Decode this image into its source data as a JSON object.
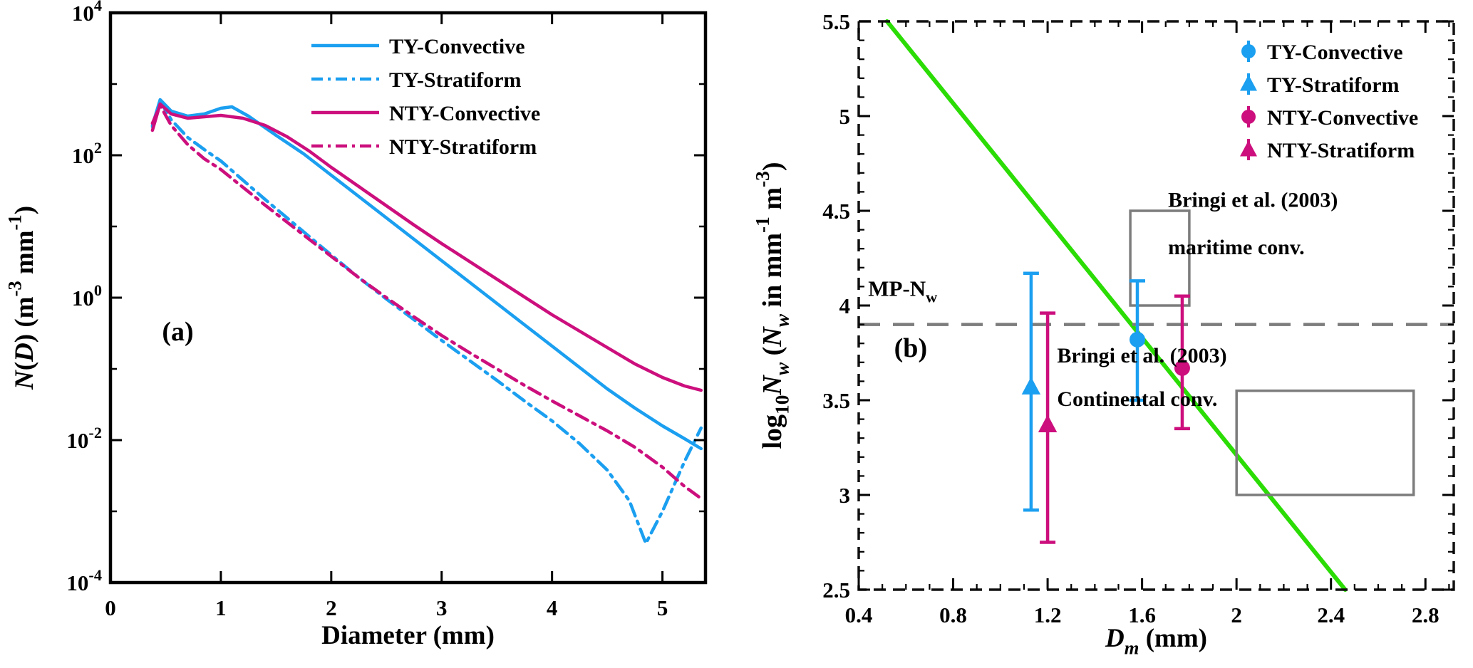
{
  "figure": {
    "background": "#ffffff"
  },
  "colors": {
    "blue": "#1b9ff0",
    "magenta": "#cc0f7d",
    "green": "#2bdc05",
    "gray": "#7c7c7c",
    "black": "#000000"
  },
  "chart_data": [
    {
      "id": "a",
      "type": "line",
      "panel_label": "(a)",
      "xlabel": "Diameter (mm)",
      "ylabel_parts": [
        {
          "text": "N",
          "style": "italic"
        },
        {
          "text": "("
        },
        {
          "text": "D",
          "style": "italic"
        },
        {
          "text": ") (m"
        },
        {
          "text": "-3",
          "style": "sup"
        },
        {
          "text": " mm"
        },
        {
          "text": "-1",
          "style": "sup"
        },
        {
          "text": ")"
        }
      ],
      "xlim": [
        0,
        5.39
      ],
      "xticks": [
        0,
        1,
        2,
        3,
        4,
        5
      ],
      "y_scale": "log10",
      "y_exp_range": [
        -4,
        4
      ],
      "y_major_exponents": [
        4,
        2,
        0,
        -2,
        -4
      ],
      "y_minor_exponents": [
        3,
        1,
        -1,
        -3
      ],
      "legend_position": "top-right-inside",
      "series": [
        {
          "name": "TY-Convective",
          "color": "blue",
          "line": "solid",
          "x": [
            0.38,
            0.45,
            0.55,
            0.7,
            0.85,
            1.0,
            1.1,
            1.25,
            1.5,
            1.75,
            2.0,
            2.25,
            2.5,
            2.75,
            3.0,
            3.25,
            3.5,
            3.75,
            4.0,
            4.25,
            4.5,
            4.75,
            5.0,
            5.2,
            5.35
          ],
          "log10_y": [
            2.42,
            2.78,
            2.62,
            2.55,
            2.58,
            2.66,
            2.68,
            2.55,
            2.28,
            2.02,
            1.72,
            1.42,
            1.12,
            0.82,
            0.52,
            0.22,
            -0.08,
            -0.38,
            -0.68,
            -0.98,
            -1.28,
            -1.55,
            -1.8,
            -1.98,
            -2.12
          ]
        },
        {
          "name": "TY-Stratiform",
          "color": "blue",
          "line": "dashdot",
          "x": [
            0.38,
            0.45,
            0.55,
            0.7,
            0.85,
            1.0,
            1.2,
            1.4,
            1.6,
            1.8,
            2.0,
            2.25,
            2.5,
            2.75,
            3.0,
            3.25,
            3.5,
            3.75,
            4.0,
            4.25,
            4.5,
            4.7,
            4.85,
            5.0,
            5.2,
            5.35
          ],
          "log10_y": [
            2.4,
            2.76,
            2.5,
            2.25,
            2.08,
            1.92,
            1.65,
            1.38,
            1.12,
            0.86,
            0.6,
            0.28,
            -0.02,
            -0.31,
            -0.6,
            -0.88,
            -1.16,
            -1.45,
            -1.73,
            -2.05,
            -2.42,
            -2.85,
            -3.45,
            -3.0,
            -2.3,
            -1.83
          ]
        },
        {
          "name": "NTY-Convective",
          "color": "magenta",
          "line": "solid",
          "x": [
            0.38,
            0.45,
            0.55,
            0.7,
            0.85,
            1.0,
            1.2,
            1.4,
            1.6,
            1.8,
            2.0,
            2.25,
            2.5,
            2.75,
            3.0,
            3.25,
            3.5,
            3.75,
            4.0,
            4.25,
            4.5,
            4.75,
            5.0,
            5.2,
            5.35
          ],
          "log10_y": [
            2.35,
            2.72,
            2.58,
            2.52,
            2.54,
            2.56,
            2.52,
            2.42,
            2.26,
            2.06,
            1.83,
            1.56,
            1.29,
            1.02,
            0.76,
            0.51,
            0.26,
            0.01,
            -0.24,
            -0.47,
            -0.7,
            -0.93,
            -1.12,
            -1.24,
            -1.3
          ]
        },
        {
          "name": "NTY-Stratiform",
          "color": "magenta",
          "line": "dashdot",
          "x": [
            0.38,
            0.45,
            0.55,
            0.7,
            0.85,
            1.0,
            1.2,
            1.4,
            1.6,
            1.8,
            2.0,
            2.25,
            2.5,
            2.75,
            3.0,
            3.25,
            3.5,
            3.75,
            4.0,
            4.25,
            4.5,
            4.75,
            5.0,
            5.2,
            5.35
          ],
          "log10_y": [
            2.45,
            2.7,
            2.42,
            2.15,
            1.95,
            1.8,
            1.55,
            1.3,
            1.06,
            0.82,
            0.58,
            0.28,
            0.0,
            -0.27,
            -0.53,
            -0.77,
            -1.0,
            -1.23,
            -1.45,
            -1.66,
            -1.87,
            -2.1,
            -2.38,
            -2.65,
            -2.82
          ]
        }
      ]
    },
    {
      "id": "b",
      "type": "scatter",
      "panel_label": "(b)",
      "xlabel_parts": [
        {
          "text": "D",
          "style": "italic"
        },
        {
          "text": "m",
          "style": "sub italic"
        },
        {
          "text": " (mm)"
        }
      ],
      "ylabel_parts": [
        {
          "text": "log"
        },
        {
          "text": "10",
          "style": "sub"
        },
        {
          "text": "N",
          "style": "italic"
        },
        {
          "text": "w",
          "style": "sub italic"
        },
        {
          "text": " ("
        },
        {
          "text": "N",
          "style": "italic"
        },
        {
          "text": "w",
          "style": "sub italic"
        },
        {
          "text": " in mm"
        },
        {
          "text": "-1",
          "style": "sup"
        },
        {
          "text": " m"
        },
        {
          "text": "-3",
          "style": "sup"
        },
        {
          "text": ")"
        }
      ],
      "xlim": [
        0.4,
        2.92
      ],
      "xticks": [
        0.4,
        0.8,
        1.2,
        1.6,
        2,
        2.4,
        2.8
      ],
      "ylim": [
        2.5,
        5.5
      ],
      "yticks": [
        2.5,
        3,
        3.5,
        4,
        4.5,
        5,
        5.5
      ],
      "points": [
        {
          "name": "TY-Convective",
          "marker": "circle",
          "color": "blue",
          "x": 1.58,
          "y": 3.82,
          "lo": 3.5,
          "hi": 4.13
        },
        {
          "name": "TY-Stratiform",
          "marker": "triangle",
          "color": "blue",
          "x": 1.13,
          "y": 3.57,
          "lo": 2.92,
          "hi": 4.17
        },
        {
          "name": "NTY-Convective",
          "marker": "circle",
          "color": "magenta",
          "x": 1.77,
          "y": 3.67,
          "lo": 3.35,
          "hi": 4.05
        },
        {
          "name": "NTY-Stratiform",
          "marker": "triangle",
          "color": "magenta",
          "x": 1.2,
          "y": 3.37,
          "lo": 2.75,
          "hi": 3.96
        }
      ],
      "reference_line_green": {
        "x1": 0.52,
        "y1": 5.5,
        "x2": 2.46,
        "y2": 2.5
      },
      "mp_line": {
        "y": 3.9,
        "label_parts": [
          {
            "text": "MP-N"
          },
          {
            "text": "w",
            "style": "sub"
          }
        ],
        "label_x": 0.44,
        "label_y": 4.05
      },
      "boxes": [
        {
          "label": "Bringi et al. (2003) maritime conv.",
          "x1": 1.55,
          "x2": 1.8,
          "y1": 4.0,
          "y2": 4.5
        },
        {
          "label": "Bringi et al. (2003) Continental conv.",
          "x1": 2.0,
          "x2": 2.75,
          "y1": 3.0,
          "y2": 3.55
        }
      ],
      "annotations": [
        {
          "lines": [
            "Bringi et al. (2003)",
            "maritime conv."
          ],
          "x": 1.71,
          "y": [
            4.52,
            4.27
          ],
          "anchor": "start"
        },
        {
          "lines": [
            "Bringi et al. (2003)",
            "Continental conv."
          ],
          "x": 1.24,
          "y": [
            3.7,
            3.47
          ],
          "anchor": "start"
        }
      ],
      "panel_label_pos": {
        "x": 0.62,
        "y": 3.73
      }
    }
  ]
}
